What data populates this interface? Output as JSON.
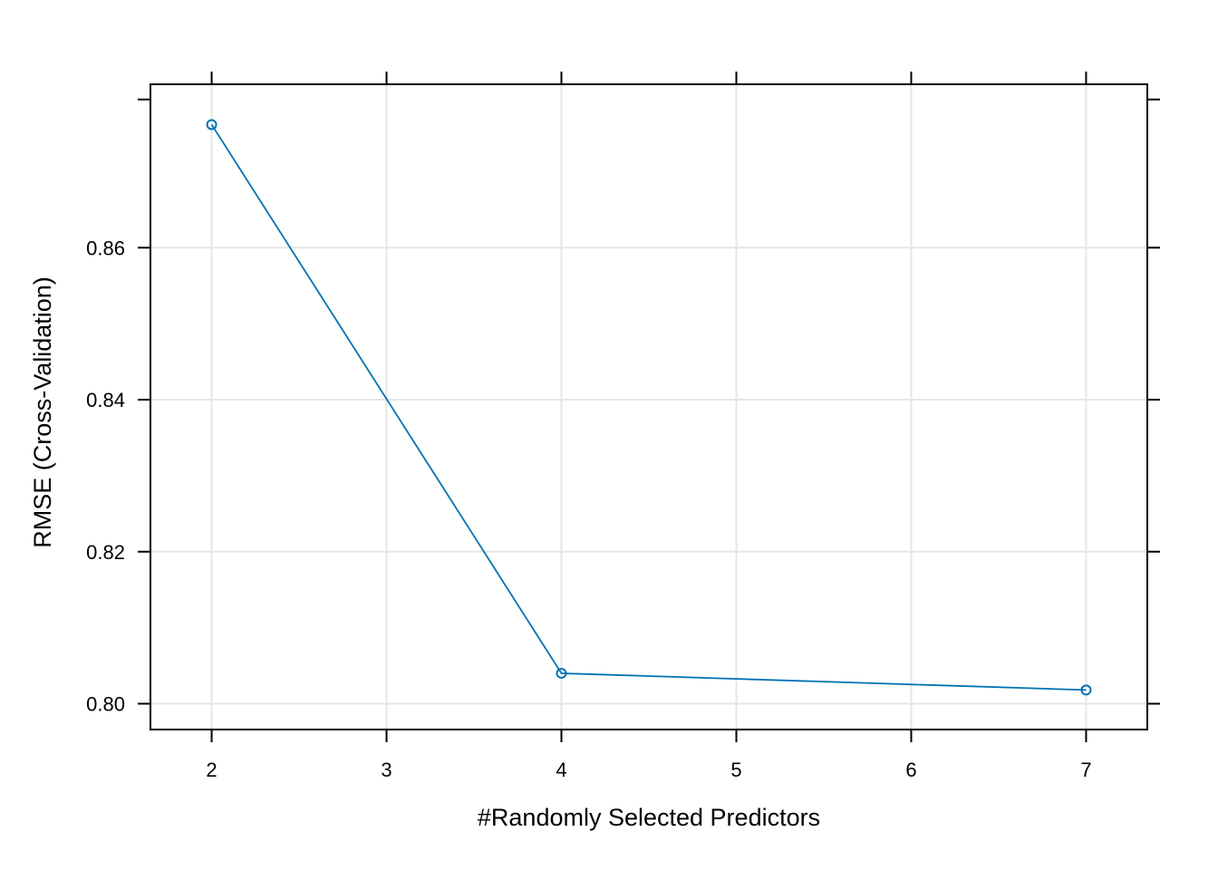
{
  "chart_data": {
    "type": "line",
    "title": "",
    "xlabel": "#Randomly Selected Predictors",
    "ylabel": "RMSE (Cross-Validation)",
    "x_ticks": [
      "2",
      "3",
      "4",
      "5",
      "6",
      "7"
    ],
    "y_ticks": [
      "0.80",
      "0.82",
      "0.84",
      "0.86"
    ],
    "xlim": [
      1.65,
      7.35
    ],
    "ylim": [
      0.7966,
      0.8815
    ],
    "grid": true,
    "series": [
      {
        "color": "#0072B2",
        "marker": "open-circle",
        "x": [
          2,
          4,
          7
        ],
        "y": [
          0.8762,
          0.804,
          0.8018
        ]
      }
    ]
  }
}
